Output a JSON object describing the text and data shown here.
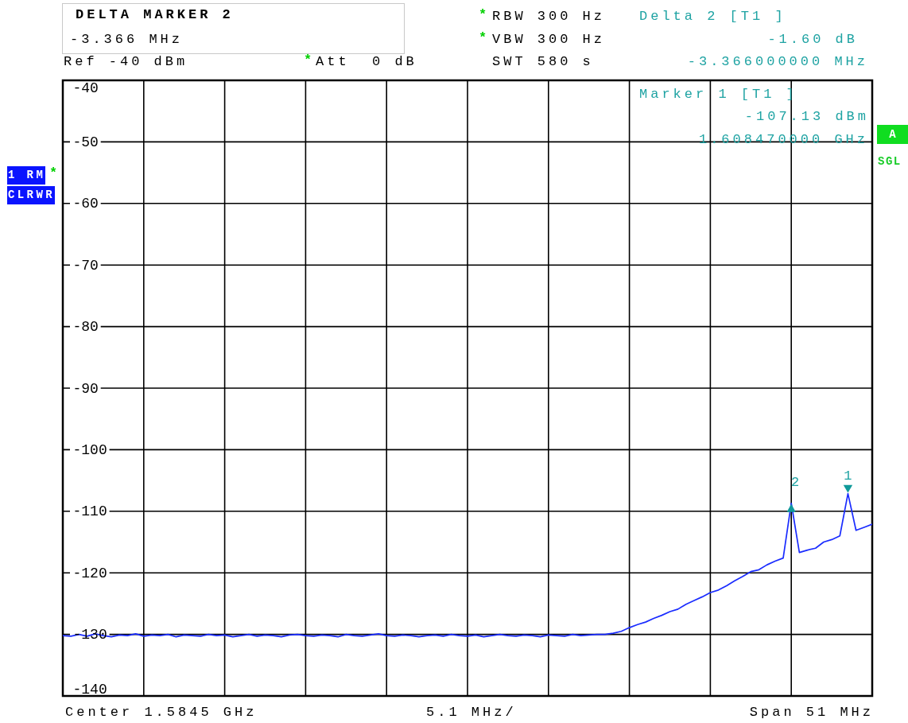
{
  "chart_data": {
    "type": "line",
    "categories": [
      null,
      null,
      null,
      null,
      null,
      null,
      null,
      null,
      null,
      null,
      null,
      null,
      null,
      null,
      null,
      null,
      null,
      null,
      null,
      null,
      null,
      null,
      null,
      null,
      null,
      null,
      null,
      null,
      null,
      null,
      null,
      null,
      null,
      null,
      null,
      null,
      null,
      null,
      null,
      null,
      null,
      null,
      null,
      null,
      null,
      null,
      null,
      null,
      null,
      null,
      null,
      null,
      null,
      null,
      null,
      null,
      null,
      null,
      null,
      null,
      null,
      null,
      null,
      null,
      null,
      null,
      null,
      null,
      null,
      null,
      null,
      null,
      null,
      null,
      null,
      null,
      null,
      null,
      null,
      null,
      null,
      null,
      null,
      null,
      null,
      null,
      null,
      null,
      null,
      null,
      null,
      null,
      null,
      null,
      null,
      null,
      null,
      null,
      null,
      null,
      null
    ],
    "series": [
      {
        "color": "#1a2cff",
        "values": [
          -130.2,
          -130.3,
          -130.0,
          -130.3,
          -129.9,
          -130.2,
          -130.4,
          -130.1,
          -130.2,
          -129.9,
          -130.3,
          -130.1,
          -130.2,
          -130.0,
          -130.4,
          -130.1,
          -130.2,
          -130.3,
          -130.0,
          -130.2,
          -130.1,
          -130.4,
          -130.2,
          -130.0,
          -130.3,
          -130.1,
          -130.2,
          -130.4,
          -130.1,
          -130.0,
          -130.2,
          -130.3,
          -130.1,
          -130.2,
          -130.4,
          -130.0,
          -130.2,
          -130.3,
          -130.1,
          -129.9,
          -130.2,
          -130.3,
          -130.1,
          -130.2,
          -130.4,
          -130.2,
          -130.1,
          -130.3,
          -130.0,
          -130.2,
          -130.3,
          -130.1,
          -130.4,
          -130.2,
          -130.0,
          -130.2,
          -130.3,
          -130.1,
          -130.2,
          -130.4,
          -130.1,
          -130.2,
          -130.3,
          -130.0,
          -130.2,
          -130.1,
          -130.0,
          -130.0,
          -129.8,
          -129.5,
          -128.9,
          -128.4,
          -128.0,
          -127.4,
          -126.9,
          -126.3,
          -125.9,
          -125.1,
          -124.5,
          -123.9,
          -123.2,
          -122.8,
          -122.1,
          -121.3,
          -120.6,
          -119.8,
          -119.5,
          -118.7,
          -118.1,
          -117.6,
          -108.7,
          -116.7,
          -116.3,
          -116.0,
          -115.0,
          -114.6,
          -114.0,
          -107.13,
          -113.1,
          -112.6,
          -112.1
        ]
      }
    ],
    "ylim": [
      -140,
      -40
    ],
    "yticks": [
      -140,
      -130,
      -120,
      -110,
      -100,
      -90,
      -80,
      -70,
      -60,
      -50,
      -40
    ],
    "grid": true,
    "tick_labels": "y",
    "annotations": [
      "DELTA MARKER 2",
      "-3.366 MHz",
      "Ref -40 dBm",
      "*",
      "Att  0 dB",
      "*",
      "RBW 300 Hz",
      "*",
      "VBW 300 Hz",
      "SWT 580 s",
      "Delta 2 [T1 ]",
      "-1.60 dB",
      "-3.366000000 MHz",
      "Marker 1 [T1 ]",
      "-107.13 dBm",
      "1.608470000 GHz",
      "1 RM",
      "*",
      "CLRWR",
      "A",
      "SGL",
      "Center 1.5845 GHz",
      "5.1 MHz/",
      "Span 51 MHz",
      {
        "text": "1",
        "y": -107.13
      },
      {
        "text": "2",
        "y": -108.7
      }
    ]
  }
}
